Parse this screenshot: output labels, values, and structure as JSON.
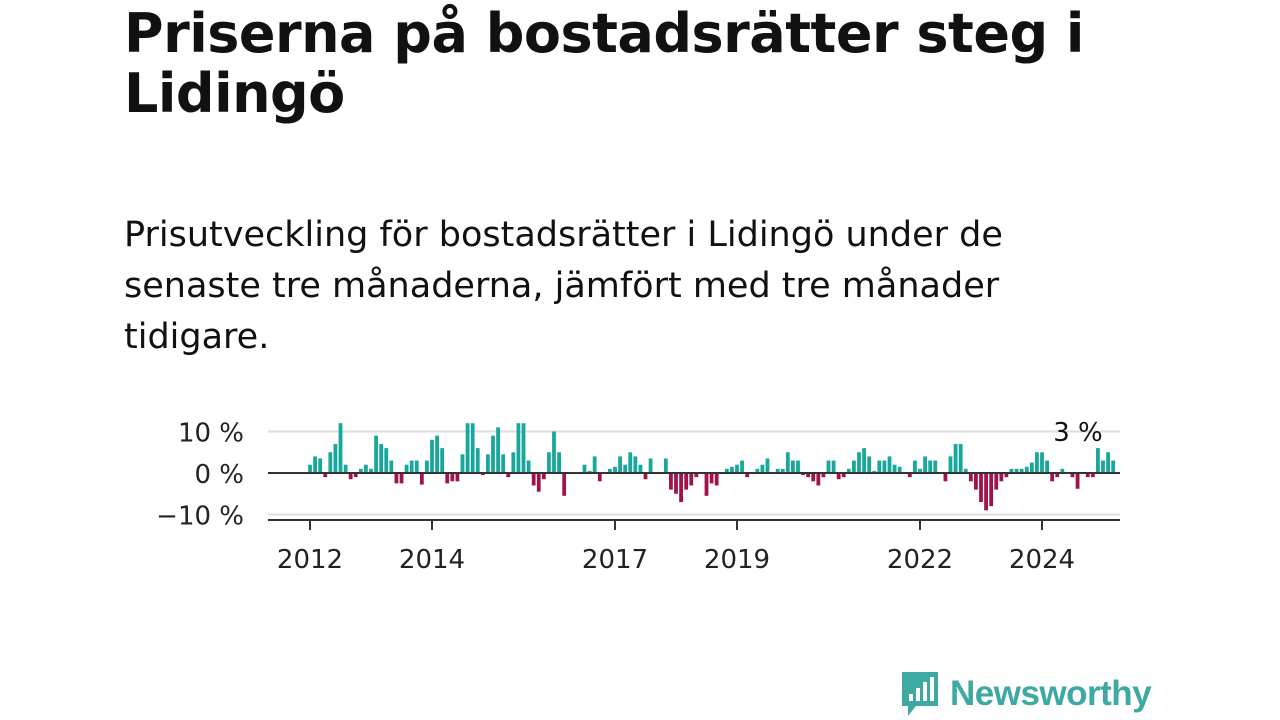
{
  "title": "Priserna på bostadsrätter steg i Lidingö",
  "subtitle": "Prisutveckling för bostadsrätter i Lidingö under de senaste tre månaderna, jämfört med tre månader tidigare.",
  "logo_text": "Newsworthy",
  "colors": {
    "positive": "#18a89b",
    "negative": "#a2124a",
    "zero_line": "#333333",
    "grid": "#dddddd",
    "logo": "#3ea8a3"
  },
  "chart_data": {
    "type": "bar",
    "title": "",
    "xlabel": "",
    "ylabel": "",
    "ylim": [
      -12,
      12
    ],
    "y_ticks": [
      {
        "value": 10,
        "label": "10 %"
      },
      {
        "value": 0,
        "label": "0 %"
      },
      {
        "value": -10,
        "label": "−10 %"
      }
    ],
    "x_ticks": [
      {
        "value": 2012,
        "label": "2012"
      },
      {
        "value": 2014,
        "label": "2014"
      },
      {
        "value": 2017,
        "label": "2017"
      },
      {
        "value": 2019,
        "label": "2019"
      },
      {
        "value": 2022,
        "label": "2022"
      },
      {
        "value": 2024,
        "label": "2024"
      }
    ],
    "x_start": 2012,
    "period": "monthly",
    "annotation": {
      "label": "3 %",
      "value": 3
    },
    "values": [
      2,
      4,
      3.5,
      -1,
      5,
      7,
      12,
      2,
      -1.5,
      -1,
      1,
      2,
      1,
      9,
      7,
      6,
      3,
      -2.5,
      -2.5,
      2,
      3,
      3,
      -2.8,
      3,
      8,
      9,
      6,
      -2.5,
      -2,
      -2,
      4.5,
      12,
      12,
      6,
      -0.5,
      4.5,
      9,
      11,
      4.5,
      -1,
      5,
      12,
      12,
      3,
      -3,
      -4.5,
      -1.5,
      5,
      10,
      5,
      -5.5,
      0,
      0,
      0,
      2,
      0.5,
      4,
      -2,
      0,
      1,
      1.5,
      4,
      2,
      5,
      4,
      2,
      -1.5,
      3.5,
      0,
      0,
      3.5,
      -4,
      -5,
      -7,
      -4,
      -3,
      -1,
      0,
      -5.5,
      -2.5,
      -3,
      0,
      1,
      1.5,
      2,
      3,
      -1,
      0,
      1,
      2,
      3.5,
      0,
      1,
      1,
      5,
      3,
      3,
      -0.5,
      -1,
      -2,
      -3,
      -1,
      3,
      3,
      -1.5,
      -1,
      1,
      3,
      5,
      6,
      4,
      0.5,
      3,
      3,
      4,
      2,
      1.5,
      0,
      -1,
      3,
      1,
      4,
      3,
      3,
      0,
      -2,
      4,
      7,
      7,
      1,
      -2,
      -4,
      -7,
      -9,
      -8,
      -4,
      -2,
      -1,
      1,
      1,
      1,
      1.5,
      2.5,
      5,
      5,
      3,
      -2,
      -1,
      1,
      0,
      -1,
      -3.8,
      0,
      -1,
      -1,
      6,
      3,
      5,
      3
    ]
  }
}
